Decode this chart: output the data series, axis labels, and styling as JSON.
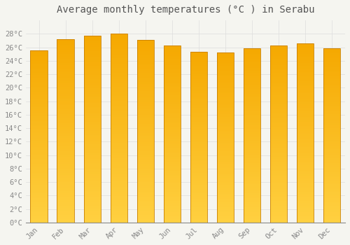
{
  "title": "Average monthly temperatures (°C ) in Serabu",
  "months": [
    "Jan",
    "Feb",
    "Mar",
    "Apr",
    "May",
    "Jun",
    "Jul",
    "Aug",
    "Sep",
    "Oct",
    "Nov",
    "Dec"
  ],
  "values": [
    25.5,
    27.2,
    27.7,
    28.0,
    27.1,
    26.3,
    25.3,
    25.2,
    25.8,
    26.3,
    26.6,
    25.9
  ],
  "bar_color_bottom": "#FFD040",
  "bar_color_top": "#F5A800",
  "bar_edge_color": "#C88000",
  "ylim": [
    0,
    30
  ],
  "yticks": [
    0,
    2,
    4,
    6,
    8,
    10,
    12,
    14,
    16,
    18,
    20,
    22,
    24,
    26,
    28
  ],
  "ytick_labels": [
    "0°C",
    "2°C",
    "4°C",
    "6°C",
    "8°C",
    "10°C",
    "12°C",
    "14°C",
    "16°C",
    "18°C",
    "20°C",
    "22°C",
    "24°C",
    "26°C",
    "28°C"
  ],
  "background_color": "#F5F5F0",
  "grid_color": "#DDDDDD",
  "title_fontsize": 10,
  "tick_fontsize": 7.5,
  "bar_width": 0.65,
  "gradient_steps": 100
}
